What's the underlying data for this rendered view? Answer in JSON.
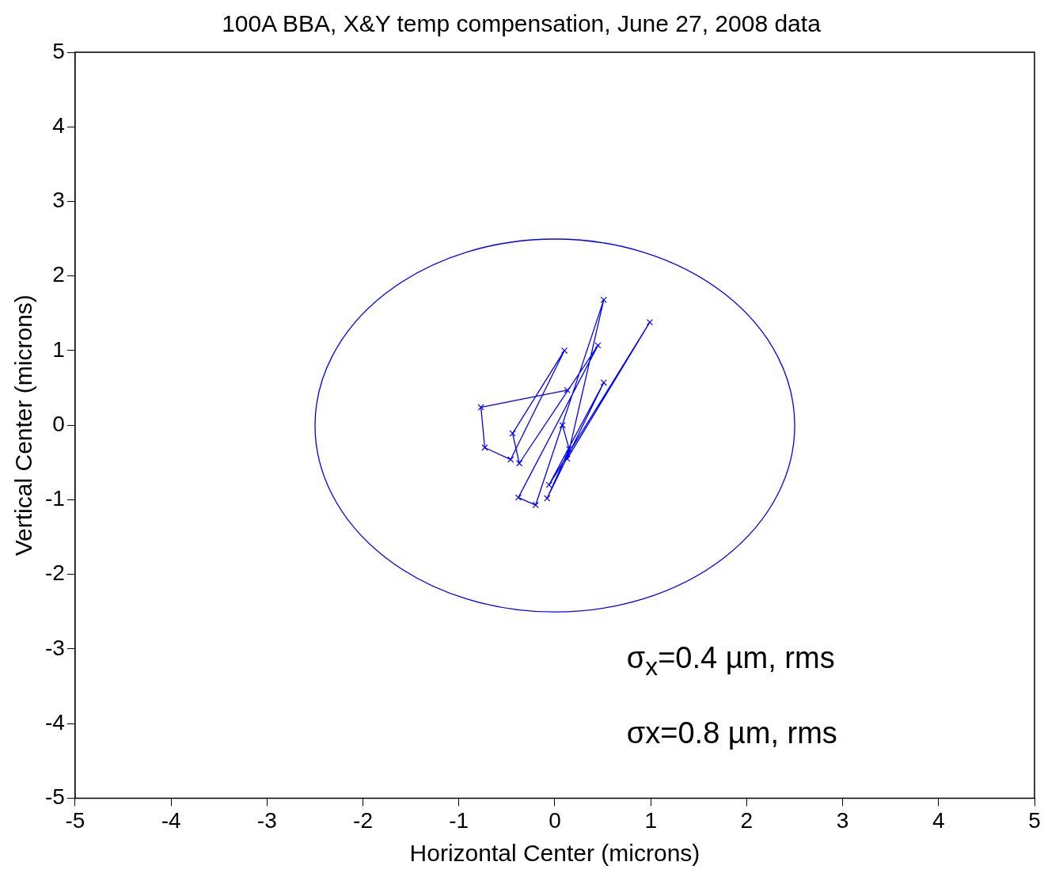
{
  "chart_data": {
    "type": "line",
    "title": "100A BBA, X&Y temp compensation, June 27, 2008 data",
    "xlabel": "Horizontal Center (microns)",
    "ylabel": "Vertical Center (microns)",
    "xlim": [
      -5,
      5
    ],
    "ylim": [
      -5,
      5
    ],
    "xticks": [
      -5,
      -4,
      -3,
      -2,
      -1,
      0,
      1,
      2,
      3,
      4,
      5
    ],
    "yticks": [
      -5,
      -4,
      -3,
      -2,
      -1,
      0,
      1,
      2,
      3,
      4,
      5
    ],
    "grid": false,
    "legend": false,
    "annotations": [
      "σ$_{x}$=0.4 µm, rms",
      "σx=0.8 µm, rms"
    ],
    "series": [
      {
        "color": "#0000ff",
        "marker": "cross",
        "x": [
          0.13,
          -0.77,
          -0.73,
          -0.46,
          0.1,
          -0.44,
          -0.37,
          0.45,
          -0.38,
          -0.2,
          0.51,
          0.13,
          0.99,
          -0.06,
          0.51,
          -0.08,
          0.15,
          0.08
        ],
        "values": [
          0.47,
          0.24,
          -0.3,
          -0.46,
          1.0,
          -0.11,
          -0.51,
          1.07,
          -0.97,
          -1.07,
          1.68,
          -0.45,
          1.38,
          -0.8,
          0.57,
          -0.98,
          -0.32,
          0.0
        ]
      }
    ]
  }
}
